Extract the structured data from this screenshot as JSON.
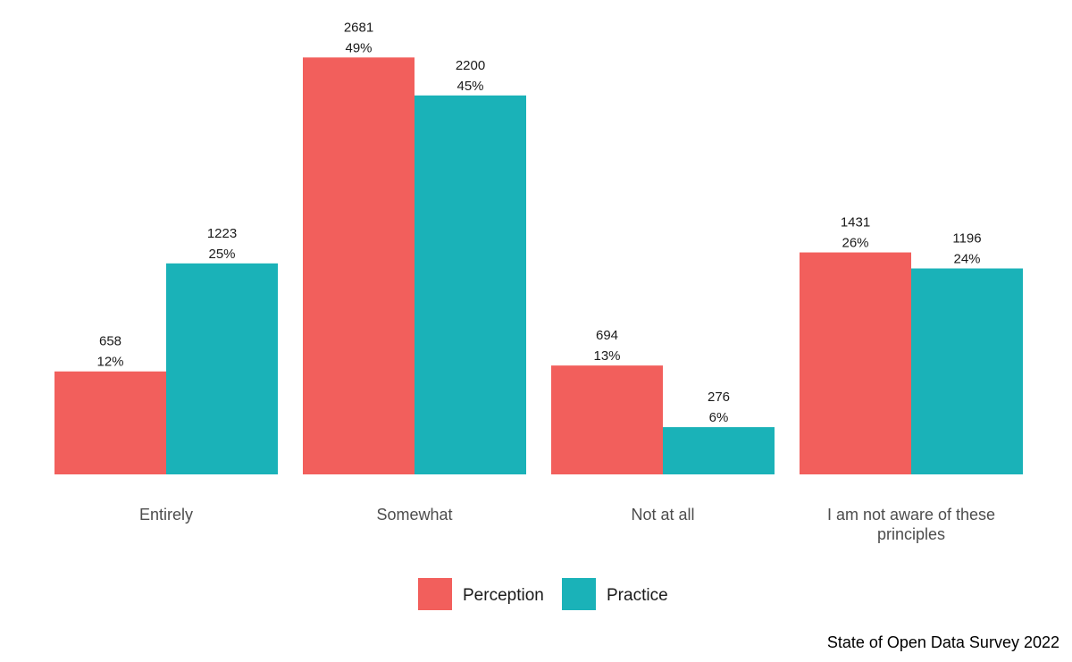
{
  "chart_data": {
    "type": "bar",
    "categories": [
      "Entirely",
      "Somewhat",
      "Not at all",
      "I am not aware of these principles"
    ],
    "series": [
      {
        "name": "Perception",
        "color": "#F25F5C",
        "counts": [
          658,
          2681,
          694,
          1431
        ],
        "percents": [
          "12%",
          "49%",
          "13%",
          "26%"
        ],
        "values": [
          12.2,
          49.4,
          12.9,
          26.3
        ]
      },
      {
        "name": "Practice",
        "color": "#1AB2B8",
        "counts": [
          1223,
          2200,
          276,
          1196
        ],
        "percents": [
          "25%",
          "45%",
          "6%",
          "24%"
        ],
        "values": [
          25.0,
          44.9,
          5.6,
          24.4
        ]
      }
    ],
    "xlabel": "",
    "ylabel": "",
    "ylim": [
      0,
      50
    ],
    "grid": false,
    "legend": "bottom",
    "caption": "State of Open Data Survey 2022"
  }
}
